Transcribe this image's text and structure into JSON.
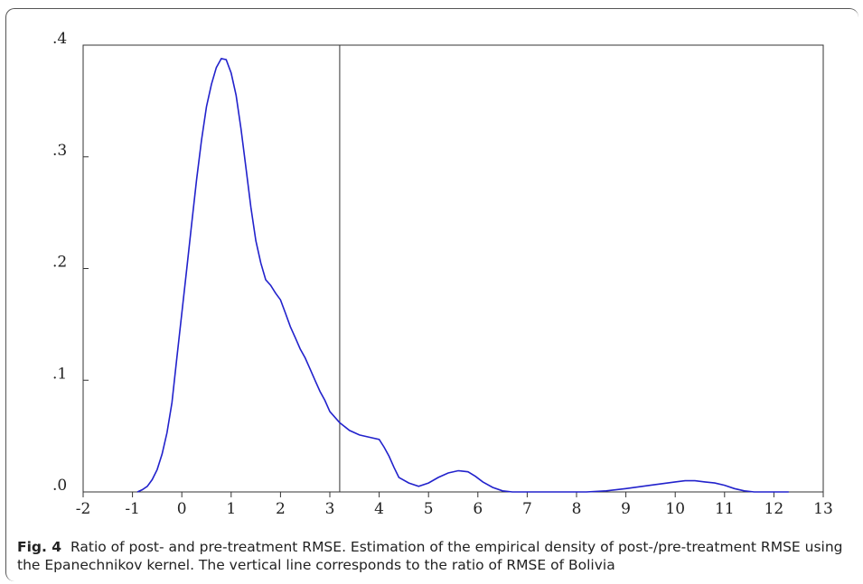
{
  "caption": {
    "label": "Fig. 4",
    "text": "Ratio of post- and pre-treatment RMSE. Estimation of the empirical density of post-/pre-treatment RMSE using the Epanechnikov kernel. The vertical line corresponds to the ratio of RMSE of Bolivia"
  },
  "chart_data": {
    "type": "line",
    "title": "",
    "xlabel": "",
    "ylabel": "",
    "xlim": [
      -2,
      13
    ],
    "ylim": [
      0,
      0.4
    ],
    "x_ticks": [
      -2,
      -1,
      0,
      1,
      2,
      3,
      4,
      5,
      6,
      7,
      8,
      9,
      10,
      11,
      12,
      13
    ],
    "y_ticks": [
      0,
      0.1,
      0.2,
      0.3,
      0.4
    ],
    "y_tick_labels": [
      ".0",
      ".1",
      ".2",
      ".3",
      ".4"
    ],
    "vertical_line_x": 3.2,
    "grid": false,
    "line_color": "#2222cc",
    "series": [
      {
        "x": [
          -0.9,
          -0.8,
          -0.7,
          -0.6,
          -0.5,
          -0.4,
          -0.3,
          -0.2,
          -0.1,
          0.0,
          0.1,
          0.2,
          0.3,
          0.4,
          0.5,
          0.6,
          0.7,
          0.8,
          0.9,
          1.0,
          1.1,
          1.2,
          1.3,
          1.4,
          1.5,
          1.6,
          1.7,
          1.8,
          1.9,
          2.0,
          2.1,
          2.2,
          2.3,
          2.4,
          2.5,
          2.6,
          2.7,
          2.8,
          2.9,
          3.0,
          3.2,
          3.4,
          3.6,
          3.8,
          4.0,
          4.1,
          4.2,
          4.3,
          4.4,
          4.6,
          4.8,
          5.0,
          5.2,
          5.4,
          5.6,
          5.8,
          5.95,
          6.1,
          6.3,
          6.5,
          6.7,
          6.9,
          7.1,
          7.3,
          7.6,
          7.9,
          8.2,
          8.6,
          9.0,
          9.5,
          10.0,
          10.2,
          10.4,
          10.6,
          10.8,
          11.0,
          11.2,
          11.4,
          11.6,
          11.8,
          12.0,
          12.2,
          12.3
        ],
        "y": [
          0.0,
          0.002,
          0.005,
          0.011,
          0.02,
          0.034,
          0.053,
          0.08,
          0.12,
          0.16,
          0.2,
          0.24,
          0.28,
          0.315,
          0.345,
          0.365,
          0.38,
          0.388,
          0.387,
          0.375,
          0.355,
          0.325,
          0.29,
          0.255,
          0.225,
          0.205,
          0.19,
          0.185,
          0.178,
          0.172,
          0.16,
          0.148,
          0.138,
          0.128,
          0.12,
          0.11,
          0.1,
          0.09,
          0.082,
          0.072,
          0.062,
          0.055,
          0.051,
          0.049,
          0.047,
          0.04,
          0.032,
          0.022,
          0.013,
          0.008,
          0.005,
          0.008,
          0.013,
          0.017,
          0.019,
          0.018,
          0.014,
          0.009,
          0.004,
          0.001,
          0.0,
          0.0,
          0.0,
          0.0,
          0.0,
          0.0,
          0.0,
          0.001,
          0.003,
          0.006,
          0.009,
          0.01,
          0.01,
          0.009,
          0.008,
          0.006,
          0.003,
          0.001,
          0.0,
          0.0,
          0.0,
          0.0,
          0.0
        ]
      }
    ]
  }
}
